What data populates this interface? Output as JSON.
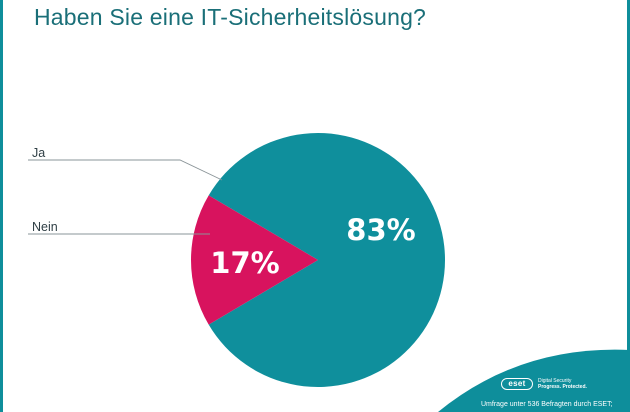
{
  "chart_data": {
    "type": "pie",
    "title": "Haben Sie eine IT-Sicherheitslösung?",
    "categories": [
      "Ja",
      "Nein"
    ],
    "values": [
      83,
      17
    ],
    "value_labels": [
      "83%",
      "17%"
    ],
    "colors": [
      "#0f8f9c",
      "#d8135e"
    ],
    "legend_placement": "left"
  },
  "brand": {
    "logo_text": "eset",
    "tagline_line1": "Digital Security",
    "tagline_line2": "Progress. Protected.",
    "accent_color": "#0e8e9b"
  },
  "footer": {
    "source_note": "Umfrage unter 536 Befragten durch ESET;"
  }
}
